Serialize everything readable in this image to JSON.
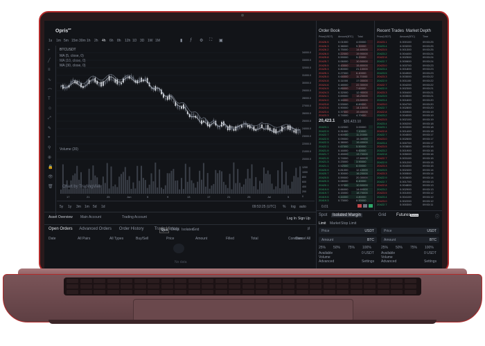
{
  "app": {
    "logo": "Opris",
    "logo_sup": "ae"
  },
  "toolbar": {
    "timeframes": [
      "1s",
      "1m",
      "5m",
      "15m",
      "30m",
      "1h",
      "2h",
      "4h",
      "6h",
      "8h",
      "12h",
      "1D",
      "3D",
      "1W",
      "1M"
    ]
  },
  "chart_legend": {
    "pair": "BTCUSDT",
    "ma1": "MA (5, close, 0)",
    "ma2": "MA (10, close, 0)",
    "ma3": "MA (30, close, 0)"
  },
  "chart_price_ticks": [
    "34000.0",
    "33000.0",
    "32000.0",
    "31000.0",
    "30000.0",
    "29000.0",
    "28000.0",
    "27000.0",
    "26000.0",
    "25000.0",
    "24000.0",
    "23000.0",
    "22000.0",
    "21000.0",
    "20000.0"
  ],
  "volume_label": "Volume (20)",
  "volume_ticks": [
    "1200",
    "1000",
    "800",
    "600",
    "400",
    "200",
    "0"
  ],
  "watermark": "Chart by TradingView",
  "time_axis": [
    "17",
    "21",
    "25",
    "Jun",
    "5",
    "9",
    "13",
    "17",
    "21",
    "25",
    "Jul",
    "5"
  ],
  "range_buttons": [
    "5y",
    "1y",
    "3m",
    "1m",
    "5d",
    "1d"
  ],
  "clock": "09:53:25 (UTC)",
  "scale_buttons": [
    "%",
    "log",
    "auto"
  ],
  "asset_overview": {
    "title": "Asset Overview",
    "main_account": "Main Account",
    "trading_account": "Trading Account",
    "login": "Log In",
    "signup": "Sign Up"
  },
  "orders_tabs": [
    "Open Orders",
    "Advanced Orders",
    "Order History",
    "Trade History"
  ],
  "orders_subtabs": [
    "Spot",
    "Cross",
    "Isolated",
    "Grid"
  ],
  "cancel_all": "Cancel All",
  "orders_columns": [
    "Date",
    "All Pairs",
    "All Types",
    "Buy/Sell",
    "Price",
    "Amount",
    "Filled",
    "Total",
    "Condition"
  ],
  "no_data": "No data",
  "order_book": {
    "title": "Order Book",
    "columns": [
      "Price(USDT)",
      "Amount(BTC)",
      "Total"
    ],
    "mid_price": "20,423.1",
    "mid_sub": "$20,423.10",
    "footer_label": "0.01"
  },
  "recent_trades": {
    "tabs": [
      "Recent Trades",
      "Market Depth"
    ],
    "columns": [
      "Price(USDT)",
      "Amount(BTC)",
      "Time"
    ]
  },
  "trade_form": {
    "tabs": [
      "Spot",
      "Isolated Margin",
      "Grid",
      "Futures"
    ],
    "futures_badge": "Bonus",
    "order_types": [
      "Limit",
      "Market",
      "Stop Limit"
    ],
    "price_label": "Price",
    "amount_label": "Amount",
    "quote": "USDT",
    "base": "BTC",
    "percents": [
      "25%",
      "50%",
      "75%",
      "100%"
    ],
    "available_label": "Available",
    "available_value": "0 USDT",
    "volume_label": "Volume",
    "advanced_label": "Advanced",
    "settings_label": "Settings"
  }
}
